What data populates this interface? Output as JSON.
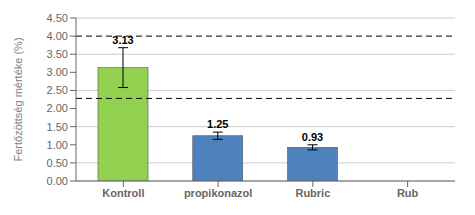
{
  "chart_data": {
    "type": "bar",
    "categories": [
      "Kontroll",
      "propikonazol",
      "Rubric",
      "Rub"
    ],
    "values": [
      3.13,
      1.25,
      0.93,
      null
    ],
    "errors": [
      0.55,
      0.1,
      0.07,
      null
    ],
    "colors": [
      "#92d050",
      "#4f81bd",
      "#4f81bd",
      "#4f81bd"
    ],
    "ylabel": "Fertőzöttség mértéke (%)",
    "ylim": [
      0,
      4.5
    ],
    "yticks": [
      {
        "value": 0,
        "label": "0.00"
      },
      {
        "value": 0.5,
        "label": "0.50"
      },
      {
        "value": 1,
        "label": "1.00"
      },
      {
        "value": 1.5,
        "label": "1.50"
      },
      {
        "value": 2,
        "label": "2.00"
      },
      {
        "value": 2.5,
        "label": "2.50"
      },
      {
        "value": 3,
        "label": "3.00"
      },
      {
        "value": 3.5,
        "label": "3.50"
      },
      {
        "value": 4,
        "label": "4.00"
      },
      {
        "value": 4.5,
        "label": "4.50"
      }
    ],
    "reference_lines": [
      2.28,
      4.0
    ],
    "data_labels": true,
    "grid": true
  }
}
